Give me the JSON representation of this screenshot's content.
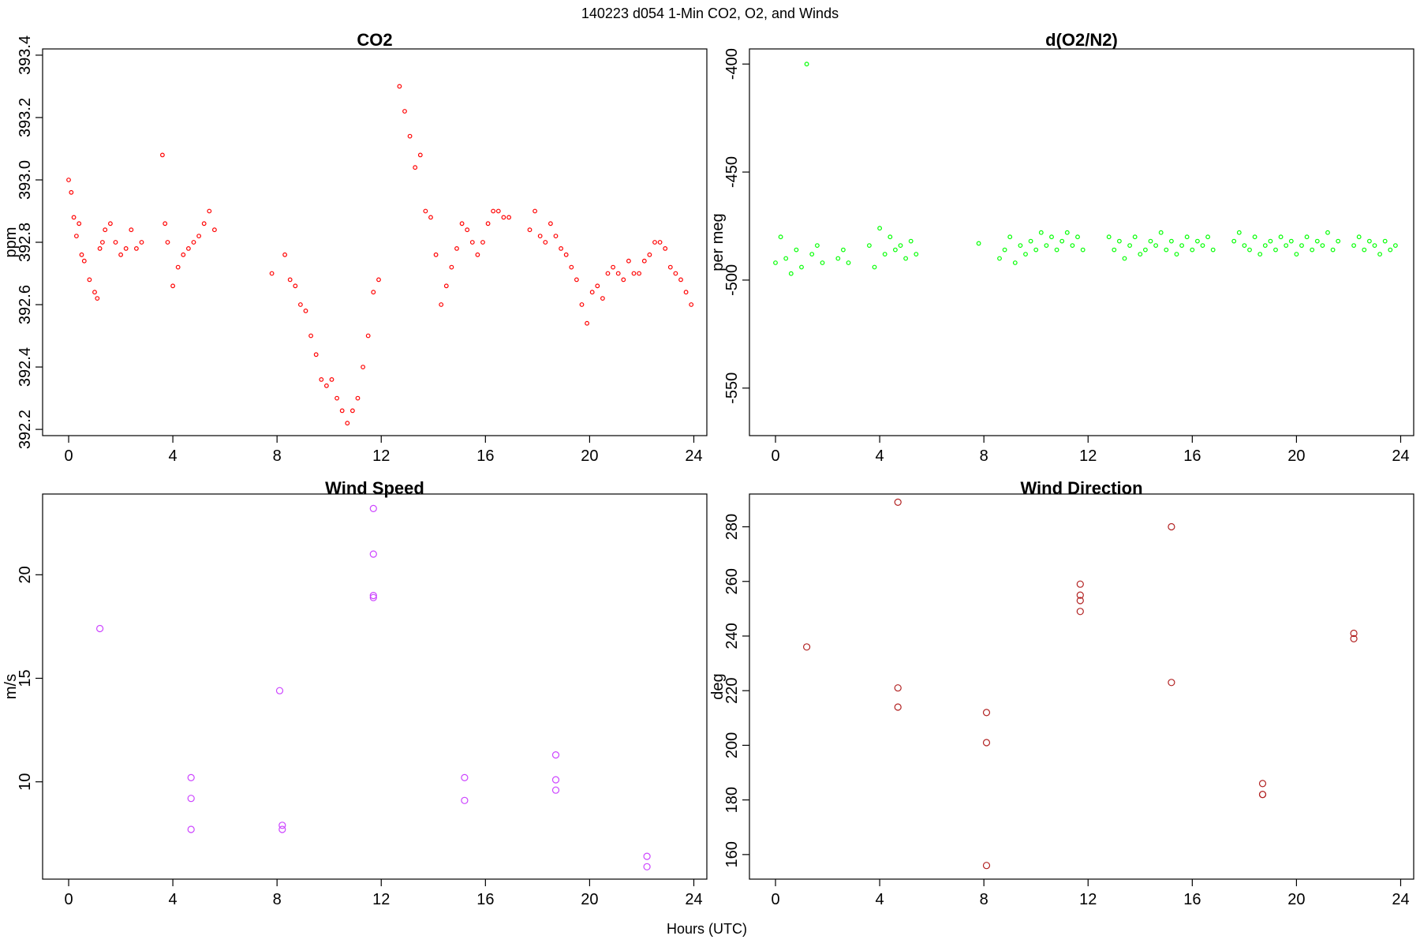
{
  "figure": {
    "title": "140223   d054   1-Min CO2, O2, and Winds",
    "xlabel": "Hours (UTC)"
  },
  "chart_data": [
    {
      "type": "scatter",
      "title": "CO2",
      "xlabel": "",
      "ylabel": "ppm",
      "xlim": [
        -1,
        24.5
      ],
      "ylim": [
        392.18,
        393.42
      ],
      "xticks": [
        0,
        4,
        8,
        12,
        16,
        20,
        24
      ],
      "yticks": [
        392.2,
        392.4,
        392.6,
        392.8,
        393.0,
        393.2,
        393.4
      ],
      "ytick_labels": [
        "392.2",
        "392.4",
        "392.6",
        "392.8",
        "393.0",
        "393.2",
        "393.4"
      ],
      "grid": false,
      "color": "#ff0000",
      "series": [
        {
          "x": [
            0.0,
            0.1,
            0.2,
            0.3,
            0.4,
            0.5,
            0.6,
            0.8,
            1.0,
            1.1,
            1.2,
            1.3,
            1.4,
            1.6,
            1.8,
            2.0,
            2.2,
            2.4,
            2.6,
            2.8,
            3.6,
            3.7,
            3.8,
            4.0,
            4.2,
            4.4,
            4.6,
            4.8,
            5.0,
            5.2,
            5.4,
            5.6,
            7.8,
            8.3,
            8.5,
            8.7,
            8.9,
            9.1,
            9.3,
            9.5,
            9.7,
            9.9,
            10.1,
            10.3,
            10.5,
            10.7,
            10.9,
            11.1,
            11.3,
            11.5,
            11.7,
            11.9,
            12.7,
            12.9,
            13.1,
            13.3,
            13.5,
            13.7,
            13.9,
            14.1,
            14.3,
            14.5,
            14.7,
            14.9,
            15.1,
            15.3,
            15.5,
            15.7,
            15.9,
            16.1,
            16.3,
            16.5,
            16.7,
            16.9,
            17.7,
            17.9,
            18.1,
            18.3,
            18.5,
            18.7,
            18.9,
            19.1,
            19.3,
            19.5,
            19.7,
            19.9,
            20.1,
            20.3,
            20.5,
            20.7,
            20.9,
            21.1,
            21.3,
            21.5,
            21.7,
            21.9,
            22.1,
            22.3,
            22.5,
            22.7,
            22.9,
            23.1,
            23.3,
            23.5,
            23.7,
            23.9
          ],
          "y": [
            393.0,
            392.96,
            392.88,
            392.82,
            392.86,
            392.76,
            392.74,
            392.68,
            392.64,
            392.62,
            392.78,
            392.8,
            392.84,
            392.86,
            392.8,
            392.76,
            392.78,
            392.84,
            392.78,
            392.8,
            393.08,
            392.86,
            392.8,
            392.66,
            392.72,
            392.76,
            392.78,
            392.8,
            392.82,
            392.86,
            392.9,
            392.84,
            392.7,
            392.76,
            392.68,
            392.66,
            392.6,
            392.58,
            392.5,
            392.44,
            392.36,
            392.34,
            392.36,
            392.3,
            392.26,
            392.22,
            392.26,
            392.3,
            392.4,
            392.5,
            392.64,
            392.68,
            393.3,
            393.22,
            393.14,
            393.04,
            393.08,
            392.9,
            392.88,
            392.76,
            392.6,
            392.66,
            392.72,
            392.78,
            392.86,
            392.84,
            392.8,
            392.76,
            392.8,
            392.86,
            392.9,
            392.9,
            392.88,
            392.88,
            392.84,
            392.9,
            392.82,
            392.8,
            392.86,
            392.82,
            392.78,
            392.76,
            392.72,
            392.68,
            392.6,
            392.54,
            392.64,
            392.66,
            392.62,
            392.7,
            392.72,
            392.7,
            392.68,
            392.74,
            392.7,
            392.7,
            392.74,
            392.76,
            392.8,
            392.8,
            392.78,
            392.72,
            392.7,
            392.68,
            392.64,
            392.6
          ]
        }
      ]
    },
    {
      "type": "scatter",
      "title": "d(O2/N2)",
      "xlabel": "",
      "ylabel": "per meg",
      "xlim": [
        -1,
        24.5
      ],
      "ylim": [
        -572,
        -393
      ],
      "xticks": [
        0,
        4,
        8,
        12,
        16,
        20,
        24
      ],
      "yticks": [
        -550,
        -500,
        -450,
        -400
      ],
      "ytick_labels": [
        "-550",
        "-500",
        "-450",
        "-400"
      ],
      "grid": false,
      "color": "#00ff00",
      "series": [
        {
          "x": [
            0.0,
            0.2,
            0.4,
            0.6,
            0.8,
            1.0,
            1.2,
            1.4,
            1.6,
            1.8,
            2.4,
            2.6,
            2.8,
            3.6,
            3.8,
            4.0,
            4.2,
            4.4,
            4.6,
            4.8,
            5.0,
            5.2,
            5.4,
            7.8,
            8.6,
            8.8,
            9.0,
            9.2,
            9.4,
            9.6,
            9.8,
            10.0,
            10.2,
            10.4,
            10.6,
            10.8,
            11.0,
            11.2,
            11.4,
            11.6,
            11.8,
            12.8,
            13.0,
            13.2,
            13.4,
            13.6,
            13.8,
            14.0,
            14.2,
            14.4,
            14.6,
            14.8,
            15.0,
            15.2,
            15.4,
            15.6,
            15.8,
            16.0,
            16.2,
            16.4,
            16.6,
            16.8,
            17.6,
            17.8,
            18.0,
            18.2,
            18.4,
            18.6,
            18.8,
            19.0,
            19.2,
            19.4,
            19.6,
            19.8,
            20.0,
            20.2,
            20.4,
            20.6,
            20.8,
            21.0,
            21.2,
            21.4,
            21.6,
            22.2,
            22.4,
            22.6,
            22.8,
            23.0,
            23.2,
            23.4,
            23.6,
            23.8
          ],
          "y": [
            -492,
            -480,
            -490,
            -497,
            -486,
            -494,
            -400,
            -488,
            -484,
            -492,
            -490,
            -486,
            -492,
            -484,
            -494,
            -476,
            -488,
            -480,
            -486,
            -484,
            -490,
            -482,
            -488,
            -483,
            -490,
            -486,
            -480,
            -492,
            -484,
            -488,
            -482,
            -486,
            -478,
            -484,
            -480,
            -486,
            -482,
            -478,
            -484,
            -480,
            -486,
            -480,
            -486,
            -482,
            -490,
            -484,
            -480,
            -488,
            -486,
            -482,
            -484,
            -478,
            -486,
            -482,
            -488,
            -484,
            -480,
            -486,
            -482,
            -484,
            -480,
            -486,
            -482,
            -478,
            -484,
            -486,
            -480,
            -488,
            -484,
            -482,
            -486,
            -480,
            -484,
            -482,
            -488,
            -484,
            -480,
            -486,
            -482,
            -484,
            -478,
            -486,
            -482,
            -484,
            -480,
            -486,
            -482,
            -484,
            -488,
            -482,
            -486,
            -484
          ]
        }
      ]
    },
    {
      "type": "scatter",
      "title": "Wind Speed",
      "xlabel": "",
      "ylabel": "m/s",
      "xlim": [
        -1,
        24.5
      ],
      "ylim": [
        5.3,
        23.9
      ],
      "xticks": [
        0,
        4,
        8,
        12,
        16,
        20,
        24
      ],
      "yticks": [
        10,
        15,
        20
      ],
      "ytick_labels": [
        "10",
        "15",
        "20"
      ],
      "grid": false,
      "color": "#cc44ff",
      "series": [
        {
          "x": [
            1.2,
            4.7,
            4.7,
            4.7,
            8.1,
            8.2,
            8.2,
            11.7,
            11.7,
            11.7,
            11.7,
            15.2,
            15.2,
            18.7,
            18.7,
            18.7,
            22.2,
            22.2
          ],
          "y": [
            17.4,
            10.2,
            9.2,
            7.7,
            14.4,
            7.9,
            7.7,
            23.2,
            21.0,
            19.0,
            18.9,
            10.2,
            9.1,
            11.3,
            10.1,
            9.6,
            6.4,
            5.9
          ]
        }
      ]
    },
    {
      "type": "scatter",
      "title": "Wind Direction",
      "xlabel": "",
      "ylabel": "deg",
      "xlim": [
        -1,
        24.5
      ],
      "ylim": [
        151,
        292
      ],
      "xticks": [
        0,
        4,
        8,
        12,
        16,
        20,
        24
      ],
      "yticks": [
        160,
        180,
        200,
        220,
        240,
        260,
        280
      ],
      "ytick_labels": [
        "160",
        "180",
        "200",
        "220",
        "240",
        "260",
        "280"
      ],
      "grid": false,
      "color": "#b22222",
      "series": [
        {
          "x": [
            1.2,
            4.7,
            4.7,
            4.7,
            8.1,
            8.1,
            8.1,
            11.7,
            11.7,
            11.7,
            11.7,
            15.2,
            15.2,
            18.7,
            18.7,
            18.7,
            22.2,
            22.2
          ],
          "y": [
            236,
            289,
            221,
            214,
            212,
            201,
            156,
            259,
            255,
            253,
            249,
            280,
            223,
            186,
            182,
            182,
            241,
            239
          ]
        }
      ]
    }
  ]
}
